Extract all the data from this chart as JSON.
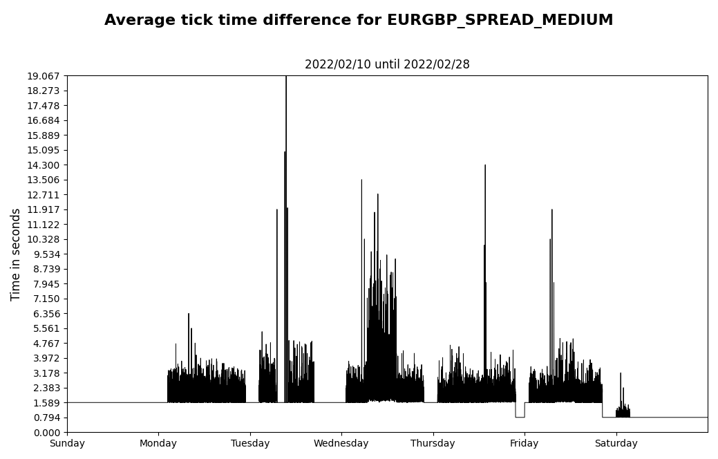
{
  "title": "Average tick time difference for EURGBP_SPREAD_MEDIUM",
  "subtitle": "2022/02/10 until 2022/02/28",
  "ylabel": "Time in seconds",
  "yticks": [
    0.0,
    0.794,
    1.589,
    2.383,
    3.178,
    3.972,
    4.767,
    5.561,
    6.356,
    7.15,
    7.945,
    8.739,
    9.534,
    10.328,
    11.122,
    11.917,
    12.711,
    13.506,
    14.3,
    15.095,
    15.889,
    16.684,
    17.478,
    18.273,
    19.067
  ],
  "xtick_labels": [
    "Sunday",
    "Monday",
    "Tuesday",
    "Wednesday",
    "Thursday",
    "Friday",
    "Saturday"
  ],
  "ylim": [
    0.0,
    19.067
  ],
  "line_color": "black",
  "line_width": 0.7,
  "bg_color": "white",
  "title_fontsize": 16,
  "subtitle_fontsize": 12,
  "label_fontsize": 12,
  "tick_fontsize": 10,
  "num_points": 50000,
  "seed": 99
}
